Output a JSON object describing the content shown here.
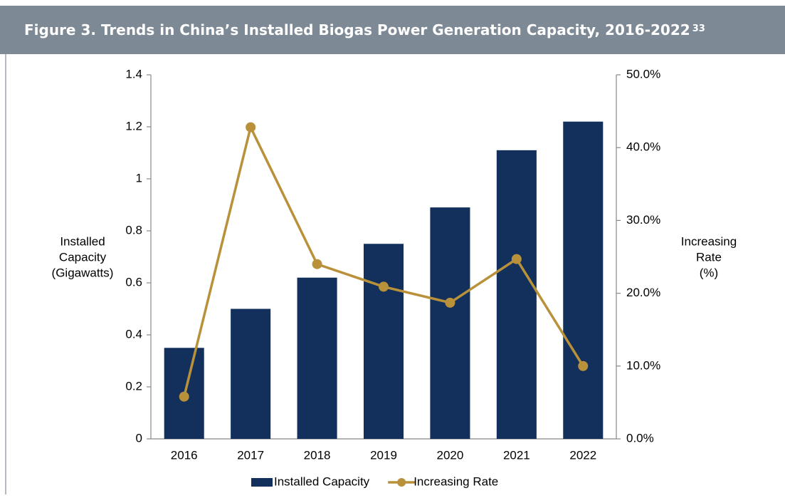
{
  "chart_data": {
    "type": "bar_line",
    "title": "Figure 3. Trends in China’s Installed Biogas Power Generation Capacity, 2016-2022",
    "title_note": "33",
    "categories": [
      "2016",
      "2017",
      "2018",
      "2019",
      "2020",
      "2021",
      "2022"
    ],
    "ylabel": [
      "Installed",
      "Capacity",
      "(Gigawatts)"
    ],
    "y2label": [
      "Increasing",
      "Rate",
      "(%)"
    ],
    "ylim": [
      0,
      1.4
    ],
    "yticks": [
      0,
      0.2,
      0.4,
      0.6,
      0.8,
      1,
      1.2,
      1.4
    ],
    "y2lim": [
      0,
      50
    ],
    "y2ticks": [
      {
        "value": 0,
        "label": "0.0%"
      },
      {
        "value": 10,
        "label": "10.0%"
      },
      {
        "value": 20,
        "label": "20.0%"
      },
      {
        "value": 30,
        "label": "30.0%"
      },
      {
        "value": 40,
        "label": "40.0%"
      },
      {
        "value": 50,
        "label": "50.0%"
      }
    ],
    "series": [
      {
        "name": "Installed Capacity",
        "type": "bar",
        "color": "#13305c",
        "values": [
          0.35,
          0.5,
          0.62,
          0.75,
          0.89,
          1.11,
          1.22
        ]
      },
      {
        "name": "Increasing Rate",
        "type": "line",
        "axis": "y2",
        "color": "#b8913a",
        "values": [
          5.8,
          42.8,
          24.0,
          20.9,
          18.7,
          24.7,
          10.0
        ]
      }
    ]
  }
}
